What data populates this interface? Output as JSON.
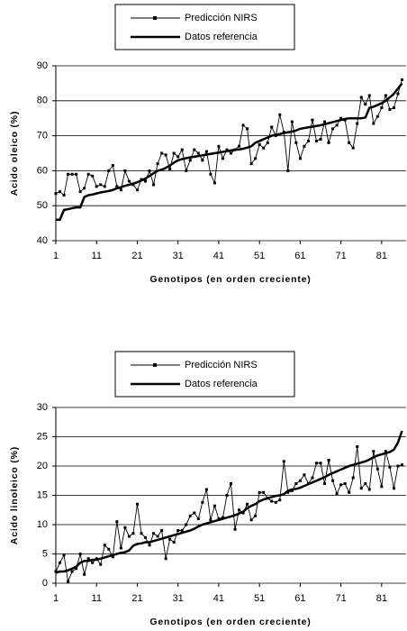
{
  "chart_data": [
    {
      "type": "line",
      "ylabel": "Acido oleico (%)",
      "xlabel": "Genotipos (en orden creciente)",
      "xlim": [
        1,
        87
      ],
      "xticks": [
        1,
        11,
        21,
        31,
        41,
        51,
        61,
        71,
        81
      ],
      "ylim": [
        40,
        90
      ],
      "yticks": [
        40,
        50,
        60,
        70,
        80,
        90
      ],
      "grid": true,
      "x": [
        1,
        2,
        3,
        4,
        5,
        6,
        7,
        8,
        9,
        10,
        11,
        12,
        13,
        14,
        15,
        16,
        17,
        18,
        19,
        20,
        21,
        22,
        23,
        24,
        25,
        26,
        27,
        28,
        29,
        30,
        31,
        32,
        33,
        34,
        35,
        36,
        37,
        38,
        39,
        40,
        41,
        42,
        43,
        44,
        45,
        46,
        47,
        48,
        49,
        50,
        51,
        52,
        53,
        54,
        55,
        56,
        57,
        58,
        59,
        60,
        61,
        62,
        63,
        64,
        65,
        66,
        67,
        68,
        69,
        70,
        71,
        72,
        73,
        74,
        75,
        76,
        77,
        78,
        79,
        80,
        81,
        82,
        83,
        84,
        85,
        86
      ],
      "series": [
        {
          "name": "Predicción NIRS",
          "color": "#000000",
          "values": [
            53.5,
            54,
            53,
            59,
            59,
            59,
            54,
            55,
            59,
            58.5,
            55.5,
            56,
            55.5,
            60,
            61.5,
            55.5,
            54.5,
            60,
            57,
            56,
            54.5,
            57.5,
            57,
            60,
            56,
            62,
            65,
            64.5,
            60.5,
            65,
            64,
            66,
            60,
            63,
            66,
            65,
            63,
            65.5,
            59,
            56.5,
            67,
            63.5,
            66,
            65,
            66,
            67,
            73,
            72,
            62,
            63.5,
            67.5,
            66.5,
            68,
            72.5,
            70,
            76,
            71,
            60,
            74,
            68,
            63.5,
            67,
            68.5,
            74.5,
            68.5,
            69,
            74,
            68,
            72,
            73,
            75,
            74.5,
            68,
            66.5,
            73.5,
            81,
            79,
            81.5,
            73.5,
            75.5,
            78,
            81.5,
            77.5,
            78,
            82,
            86
          ]
        },
        {
          "name": "Datos referencia",
          "color": "#000000",
          "values": [
            46,
            46,
            48.8,
            49,
            49.3,
            49.5,
            49.5,
            52.5,
            53,
            53.2,
            53.5,
            53.8,
            54,
            54.2,
            54.5,
            55,
            55.3,
            55.7,
            56,
            56.3,
            56.7,
            57.2,
            57.8,
            58.5,
            59.3,
            60,
            60.3,
            60.8,
            61.5,
            62.3,
            63,
            63.3,
            63.6,
            63.8,
            64,
            64.2,
            64.4,
            64.6,
            64.8,
            65,
            65.2,
            65.4,
            65.6,
            65.8,
            66,
            66.1,
            66.3,
            66.6,
            67,
            68,
            68.5,
            69,
            69.5,
            70,
            70.3,
            70.5,
            70.8,
            71,
            71.2,
            71.5,
            72,
            72.2,
            72.4,
            72.6,
            72.8,
            73,
            73.3,
            73.6,
            73.9,
            74.2,
            74.5,
            74.8,
            75,
            75,
            75,
            75,
            75.2,
            78,
            78.3,
            78.8,
            79.3,
            80,
            81,
            82,
            83.5,
            85
          ]
        }
      ]
    },
    {
      "type": "line",
      "ylabel": "Acido linoleico (%)",
      "xlabel": "Genotipos (en orden creciente)",
      "xlim": [
        1,
        87
      ],
      "xticks": [
        1,
        11,
        21,
        31,
        41,
        51,
        61,
        71,
        81
      ],
      "ylim": [
        0,
        30
      ],
      "yticks": [
        0,
        5,
        10,
        15,
        20,
        25,
        30
      ],
      "grid": true,
      "x": [
        1,
        2,
        3,
        4,
        5,
        6,
        7,
        8,
        9,
        10,
        11,
        12,
        13,
        14,
        15,
        16,
        17,
        18,
        19,
        20,
        21,
        22,
        23,
        24,
        25,
        26,
        27,
        28,
        29,
        30,
        31,
        32,
        33,
        34,
        35,
        36,
        37,
        38,
        39,
        40,
        41,
        42,
        43,
        44,
        45,
        46,
        47,
        48,
        49,
        50,
        51,
        52,
        53,
        54,
        55,
        56,
        57,
        58,
        59,
        60,
        61,
        62,
        63,
        64,
        65,
        66,
        67,
        68,
        69,
        70,
        71,
        72,
        73,
        74,
        75,
        76,
        77,
        78,
        79,
        80,
        81,
        82,
        83,
        84,
        85,
        86
      ],
      "series": [
        {
          "name": "Predicción NIRS",
          "color": "#000000",
          "values": [
            2,
            3.5,
            4.8,
            0.3,
            2,
            2.5,
            5,
            1.5,
            4.2,
            3.5,
            4.2,
            3.2,
            6.5,
            5.8,
            4.5,
            10.5,
            6,
            9.5,
            8,
            8.5,
            13.5,
            8.5,
            7.8,
            6.5,
            8.5,
            8,
            9,
            4.2,
            7.5,
            7,
            9,
            9,
            10,
            11.5,
            12,
            11,
            13.8,
            16,
            10.8,
            13.2,
            11,
            11.2,
            15,
            17,
            9.2,
            12.5,
            12,
            13.5,
            10.8,
            11.5,
            15.5,
            15.5,
            14.5,
            14,
            13.8,
            14.2,
            20.8,
            15.5,
            15.8,
            17,
            17.5,
            18.5,
            17,
            18,
            20.5,
            20.5,
            17,
            21,
            17.5,
            15.3,
            16.8,
            17,
            15.5,
            18,
            23.3,
            16.2,
            17,
            16,
            22.5,
            19.5,
            16.5,
            22.5,
            19.8,
            16.2,
            20,
            20.2
          ]
        },
        {
          "name": "Datos referencia",
          "color": "#000000",
          "values": [
            1.8,
            2,
            2,
            2.2,
            2.5,
            2.8,
            3.5,
            3.8,
            3.8,
            4,
            4,
            4.2,
            4.4,
            4.6,
            4.8,
            5,
            5.2,
            5.3,
            5.6,
            6.4,
            6.7,
            6.8,
            7,
            7,
            7.2,
            7.4,
            7.6,
            7.8,
            8,
            8.2,
            8.4,
            8.6,
            8.8,
            9,
            9.3,
            9.7,
            10,
            10.2,
            10.4,
            10.6,
            10.8,
            11,
            11.2,
            11.4,
            11.6,
            11.9,
            12.2,
            12.8,
            13.2,
            13.5,
            14,
            14.3,
            14.5,
            14.7,
            14.9,
            15,
            15.2,
            15.8,
            16,
            16.1,
            16.3,
            16.6,
            16.9,
            17.2,
            17.5,
            17.8,
            18.1,
            18.5,
            18.8,
            19.1,
            19.4,
            19.7,
            20,
            20.2,
            20.4,
            20.6,
            20.8,
            21.1,
            21.5,
            21.8,
            22,
            22.2,
            22.4,
            22.8,
            24,
            26
          ]
        }
      ]
    }
  ]
}
